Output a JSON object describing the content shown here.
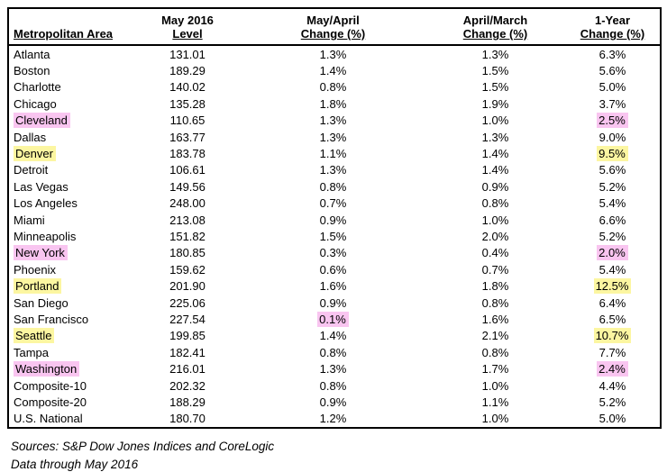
{
  "colors": {
    "highlight_pink": "#f9c5f0",
    "highlight_yellow": "#fcf6a1",
    "border": "#000000",
    "text": "#000000",
    "background": "#ffffff"
  },
  "table": {
    "columns": [
      {
        "line1": "",
        "line2": "Metropolitan Area"
      },
      {
        "line1": "May 2016",
        "line2": "Level"
      },
      {
        "line1": "May/April",
        "line2": "Change (%)"
      },
      {
        "line1": "April/March",
        "line2": "Change (%)"
      },
      {
        "line1": "1-Year",
        "line2": "Change (%)"
      }
    ],
    "rows": [
      {
        "area": "Atlanta",
        "level": "131.01",
        "may_april": "1.3%",
        "april_march": "1.3%",
        "one_year": "6.3%",
        "area_highlight": "",
        "may_april_highlight": "",
        "one_year_highlight": ""
      },
      {
        "area": "Boston",
        "level": "189.29",
        "may_april": "1.4%",
        "april_march": "1.5%",
        "one_year": "5.6%",
        "area_highlight": "",
        "may_april_highlight": "",
        "one_year_highlight": ""
      },
      {
        "area": "Charlotte",
        "level": "140.02",
        "may_april": "0.8%",
        "april_march": "1.5%",
        "one_year": "5.0%",
        "area_highlight": "",
        "may_april_highlight": "",
        "one_year_highlight": ""
      },
      {
        "area": "Chicago",
        "level": "135.28",
        "may_april": "1.8%",
        "april_march": "1.9%",
        "one_year": "3.7%",
        "area_highlight": "",
        "may_april_highlight": "",
        "one_year_highlight": ""
      },
      {
        "area": "Cleveland",
        "level": "110.65",
        "may_april": "1.3%",
        "april_march": "1.0%",
        "one_year": "2.5%",
        "area_highlight": "pink",
        "may_april_highlight": "",
        "one_year_highlight": "pink"
      },
      {
        "area": "Dallas",
        "level": "163.77",
        "may_april": "1.3%",
        "april_march": "1.3%",
        "one_year": "9.0%",
        "area_highlight": "",
        "may_april_highlight": "",
        "one_year_highlight": ""
      },
      {
        "area": "Denver",
        "level": "183.78",
        "may_april": "1.1%",
        "april_march": "1.4%",
        "one_year": "9.5%",
        "area_highlight": "yellow",
        "may_april_highlight": "",
        "one_year_highlight": "yellow"
      },
      {
        "area": "Detroit",
        "level": "106.61",
        "may_april": "1.3%",
        "april_march": "1.4%",
        "one_year": "5.6%",
        "area_highlight": "",
        "may_april_highlight": "",
        "one_year_highlight": ""
      },
      {
        "area": "Las Vegas",
        "level": "149.56",
        "may_april": "0.8%",
        "april_march": "0.9%",
        "one_year": "5.2%",
        "area_highlight": "",
        "may_april_highlight": "",
        "one_year_highlight": ""
      },
      {
        "area": "Los Angeles",
        "level": "248.00",
        "may_april": "0.7%",
        "april_march": "0.8%",
        "one_year": "5.4%",
        "area_highlight": "",
        "may_april_highlight": "",
        "one_year_highlight": ""
      },
      {
        "area": "Miami",
        "level": "213.08",
        "may_april": "0.9%",
        "april_march": "1.0%",
        "one_year": "6.6%",
        "area_highlight": "",
        "may_april_highlight": "",
        "one_year_highlight": ""
      },
      {
        "area": "Minneapolis",
        "level": "151.82",
        "may_april": "1.5%",
        "april_march": "2.0%",
        "one_year": "5.2%",
        "area_highlight": "",
        "may_april_highlight": "",
        "one_year_highlight": ""
      },
      {
        "area": "New York",
        "level": "180.85",
        "may_april": "0.3%",
        "april_march": "0.4%",
        "one_year": "2.0%",
        "area_highlight": "pink",
        "may_april_highlight": "",
        "one_year_highlight": "pink"
      },
      {
        "area": "Phoenix",
        "level": "159.62",
        "may_april": "0.6%",
        "april_march": "0.7%",
        "one_year": "5.4%",
        "area_highlight": "",
        "may_april_highlight": "",
        "one_year_highlight": ""
      },
      {
        "area": "Portland",
        "level": "201.90",
        "may_april": "1.6%",
        "april_march": "1.8%",
        "one_year": "12.5%",
        "area_highlight": "yellow",
        "may_april_highlight": "",
        "one_year_highlight": "yellow"
      },
      {
        "area": "San Diego",
        "level": "225.06",
        "may_april": "0.9%",
        "april_march": "0.8%",
        "one_year": "6.4%",
        "area_highlight": "",
        "may_april_highlight": "",
        "one_year_highlight": ""
      },
      {
        "area": "San Francisco",
        "level": "227.54",
        "may_april": "0.1%",
        "april_march": "1.6%",
        "one_year": "6.5%",
        "area_highlight": "",
        "may_april_highlight": "pink",
        "one_year_highlight": ""
      },
      {
        "area": "Seattle",
        "level": "199.85",
        "may_april": "1.4%",
        "april_march": "2.1%",
        "one_year": "10.7%",
        "area_highlight": "yellow",
        "may_april_highlight": "",
        "one_year_highlight": "yellow"
      },
      {
        "area": "Tampa",
        "level": "182.41",
        "may_april": "0.8%",
        "april_march": "0.8%",
        "one_year": "7.7%",
        "area_highlight": "",
        "may_april_highlight": "",
        "one_year_highlight": ""
      },
      {
        "area": "Washington",
        "level": "216.01",
        "may_april": "1.3%",
        "april_march": "1.7%",
        "one_year": "2.4%",
        "area_highlight": "pink",
        "may_april_highlight": "",
        "one_year_highlight": "pink"
      },
      {
        "area": "Composite-10",
        "level": "202.32",
        "may_april": "0.8%",
        "april_march": "1.0%",
        "one_year": "4.4%",
        "area_highlight": "",
        "may_april_highlight": "",
        "one_year_highlight": ""
      },
      {
        "area": "Composite-20",
        "level": "188.29",
        "may_april": "0.9%",
        "april_march": "1.1%",
        "one_year": "5.2%",
        "area_highlight": "",
        "may_april_highlight": "",
        "one_year_highlight": ""
      },
      {
        "area": "U.S. National",
        "level": "180.70",
        "may_april": "1.2%",
        "april_march": "1.0%",
        "one_year": "5.0%",
        "area_highlight": "",
        "may_april_highlight": "",
        "one_year_highlight": ""
      }
    ]
  },
  "footer": {
    "sources": "Sources: S&P Dow Jones Indices and CoreLogic",
    "data_through": "Data through May 2016"
  }
}
